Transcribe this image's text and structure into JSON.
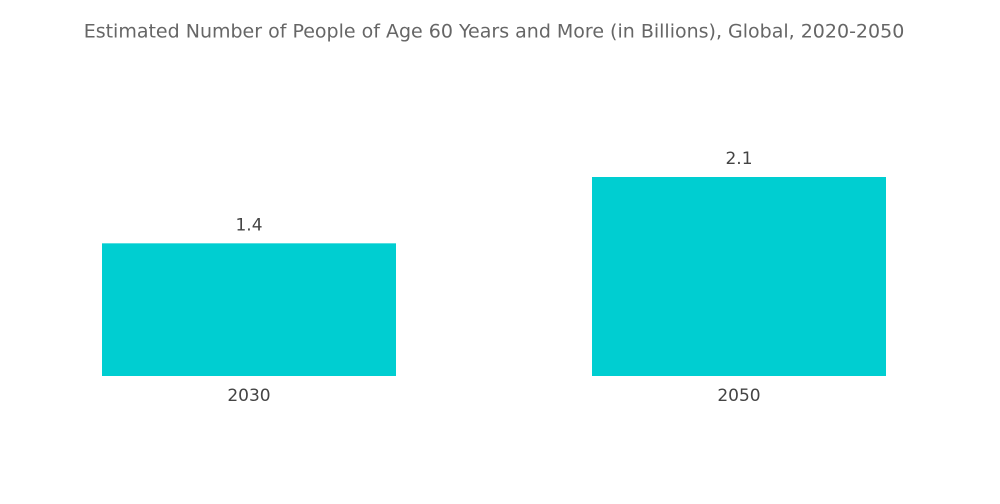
{
  "chart_data": {
    "type": "bar",
    "title": "Estimated Number of People of Age 60 Years and More (in Billions), Global, 2020-2050",
    "categories": [
      "2030",
      "2050"
    ],
    "values": [
      1.4,
      2.1
    ],
    "color": "#00ced1"
  }
}
